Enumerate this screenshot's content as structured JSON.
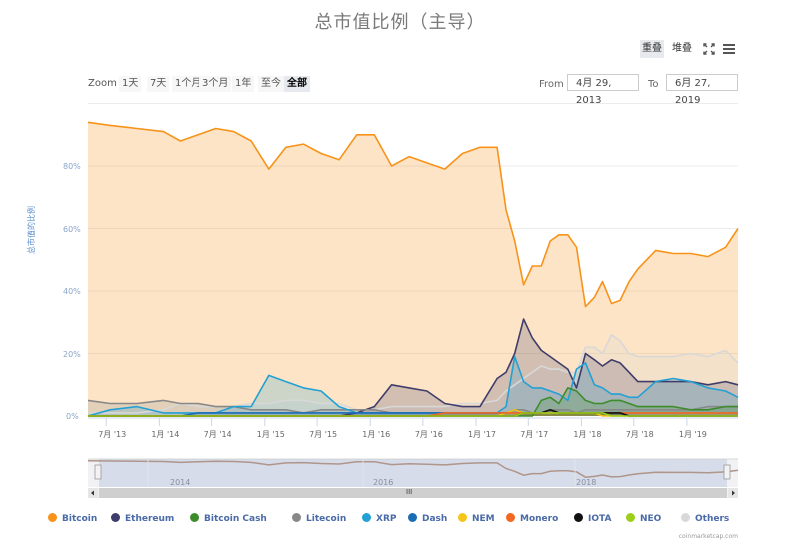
{
  "title": "总市值比例（主导）",
  "toolbar": {
    "overlap_label": "重叠",
    "stacked_label": "堆叠",
    "fullscreen_icon": "expand-icon",
    "menu_icon": "hamburger-menu-icon"
  },
  "range_selector": {
    "zoom_label": "Zoom",
    "buttons": [
      "1天",
      "7天",
      "1个月",
      "3个月",
      "1年",
      "至今",
      "全部"
    ],
    "active": "全部",
    "from_label": "From",
    "from_value": "4月 29, 2013",
    "to_label": "To",
    "to_value": "6月 27, 2019"
  },
  "navigator": {
    "labels": [
      "2014",
      "2016",
      "2018"
    ],
    "scroll_grip": "III"
  },
  "credits": "coinmarketcap.com",
  "chart_data": {
    "type": "area",
    "title": "总市值比例（主导）",
    "xlabel": "",
    "ylabel": "总市值的比例",
    "ylim": [
      0,
      100
    ],
    "yticks": [
      "0%",
      "20%",
      "40%",
      "60%",
      "80%"
    ],
    "xticks": [
      "7月 '13",
      "1月 '14",
      "7月 '14",
      "1月 '15",
      "7月 '15",
      "1月 '16",
      "7月 '16",
      "1月 '17",
      "7月 '17",
      "1月 '18",
      "7月 '18",
      "1月 '19"
    ],
    "grid": true,
    "legend_position": "bottom",
    "x": [
      "2013-05",
      "2013-07",
      "2013-10",
      "2014-01",
      "2014-03",
      "2014-05",
      "2014-07",
      "2014-09",
      "2014-11",
      "2015-01",
      "2015-03",
      "2015-05",
      "2015-07",
      "2015-09",
      "2015-11",
      "2016-01",
      "2016-03",
      "2016-05",
      "2016-07",
      "2016-09",
      "2016-11",
      "2017-01",
      "2017-03",
      "2017-04",
      "2017-05",
      "2017-06",
      "2017-07",
      "2017-08",
      "2017-09",
      "2017-10",
      "2017-11",
      "2017-12",
      "2018-01",
      "2018-02",
      "2018-03",
      "2018-04",
      "2018-05",
      "2018-06",
      "2018-07",
      "2018-09",
      "2018-11",
      "2019-01",
      "2019-03",
      "2019-05",
      "2019-06"
    ],
    "series": [
      {
        "name": "Bitcoin",
        "color": "#f7931a",
        "values": [
          94,
          93,
          92,
          91,
          88,
          90,
          92,
          91,
          88,
          79,
          86,
          87,
          84,
          82,
          90,
          90,
          80,
          83,
          81,
          79,
          84,
          86,
          86,
          66,
          56,
          42,
          48,
          48,
          56,
          58,
          58,
          54,
          35,
          38,
          43,
          36,
          37,
          43,
          47,
          53,
          52,
          52,
          51,
          54,
          60
        ]
      },
      {
        "name": "Ethereum",
        "color": "#3f3d6b",
        "values": [
          0,
          0,
          0,
          0,
          0,
          0,
          0,
          0,
          0,
          0,
          0,
          0,
          0,
          0,
          1,
          3,
          10,
          9,
          8,
          4,
          3,
          3,
          12,
          14,
          20,
          31,
          25,
          21,
          19,
          17,
          15,
          9,
          20,
          18,
          16,
          18,
          17,
          14,
          11,
          11,
          11,
          11,
          10,
          11,
          10
        ]
      },
      {
        "name": "Bitcoin Cash",
        "color": "#3d8c2b",
        "values": [
          0,
          0,
          0,
          0,
          0,
          0,
          0,
          0,
          0,
          0,
          0,
          0,
          0,
          0,
          0,
          0,
          0,
          0,
          0,
          0,
          0,
          0,
          0,
          0,
          0,
          0,
          0,
          5,
          6,
          4,
          9,
          8,
          5,
          4,
          4,
          5,
          5,
          4,
          3,
          3,
          3,
          2,
          2,
          3,
          3
        ]
      },
      {
        "name": "Litecoin",
        "color": "#888888",
        "values": [
          5,
          4,
          4,
          5,
          4,
          4,
          3,
          3,
          2,
          2,
          2,
          1,
          2,
          2,
          2,
          2,
          1,
          1,
          1,
          1,
          1,
          1,
          1,
          1,
          2,
          2,
          1,
          1,
          2,
          2,
          2,
          1,
          2,
          2,
          2,
          2,
          2,
          2,
          2,
          2,
          2,
          2,
          3,
          3,
          3
        ]
      },
      {
        "name": "XRP",
        "color": "#23a0d4",
        "values": [
          0,
          2,
          3,
          1,
          1,
          1,
          1,
          3,
          3,
          13,
          11,
          9,
          8,
          3,
          1,
          1,
          1,
          1,
          1,
          1,
          1,
          1,
          1,
          3,
          19,
          11,
          9,
          9,
          8,
          7,
          5,
          15,
          17,
          10,
          9,
          7,
          7,
          6,
          6,
          11,
          12,
          11,
          9,
          8,
          6
        ]
      },
      {
        "name": "Dash",
        "color": "#1a6cb3",
        "values": [
          0,
          0,
          0,
          0,
          0,
          1,
          1,
          1,
          1,
          1,
          1,
          1,
          1,
          1,
          1,
          1,
          1,
          1,
          1,
          1,
          1,
          1,
          1,
          1,
          2,
          1,
          1,
          1,
          1,
          1,
          1,
          1,
          1,
          1,
          1,
          1,
          1,
          0,
          0,
          0,
          0,
          0,
          0,
          0,
          0
        ]
      },
      {
        "name": "NEM",
        "color": "#f5c518",
        "values": [
          0,
          0,
          0,
          0,
          0,
          0,
          0,
          0,
          0,
          0,
          0,
          0,
          0,
          0,
          0,
          0,
          0,
          0,
          0,
          0,
          0,
          0,
          0,
          1,
          2,
          1,
          1,
          1,
          1,
          1,
          1,
          1,
          1,
          1,
          0,
          0,
          0,
          0,
          0,
          0,
          0,
          0,
          0,
          0,
          0
        ]
      },
      {
        "name": "Monero",
        "color": "#f26822",
        "values": [
          0,
          0,
          0,
          0,
          0,
          0,
          0,
          0,
          0,
          0,
          0,
          0,
          0,
          0,
          0,
          0,
          0,
          0,
          0,
          1,
          1,
          1,
          1,
          1,
          1,
          1,
          1,
          1,
          1,
          1,
          1,
          1,
          1,
          1,
          1,
          1,
          1,
          1,
          1,
          1,
          1,
          1,
          1,
          1,
          1
        ]
      },
      {
        "name": "IOTA",
        "color": "#111111",
        "values": [
          0,
          0,
          0,
          0,
          0,
          0,
          0,
          0,
          0,
          0,
          0,
          0,
          0,
          0,
          0,
          0,
          0,
          0,
          0,
          0,
          0,
          0,
          0,
          0,
          0,
          1,
          1,
          1,
          2,
          1,
          1,
          1,
          1,
          1,
          1,
          1,
          1,
          0,
          0,
          0,
          0,
          0,
          0,
          0,
          0
        ]
      },
      {
        "name": "NEO",
        "color": "#9bcf1c",
        "values": [
          0,
          0,
          0,
          0,
          0,
          0,
          0,
          0,
          0,
          0,
          0,
          0,
          0,
          0,
          0,
          0,
          0,
          0,
          0,
          0,
          0,
          0,
          0,
          0,
          0,
          1,
          1,
          1,
          1,
          1,
          1,
          1,
          1,
          1,
          1,
          0,
          0,
          0,
          0,
          0,
          0,
          0,
          0,
          0,
          0
        ]
      },
      {
        "name": "Others",
        "color": "#d8d8d8",
        "values": [
          1,
          1,
          1,
          2,
          4,
          3,
          3,
          3,
          4,
          4,
          5,
          5,
          4,
          4,
          2,
          2,
          3,
          3,
          3,
          3,
          4,
          4,
          5,
          8,
          10,
          12,
          14,
          16,
          15,
          15,
          14,
          14,
          22,
          22,
          20,
          26,
          24,
          20,
          19,
          19,
          19,
          20,
          19,
          21,
          17
        ]
      }
    ]
  }
}
